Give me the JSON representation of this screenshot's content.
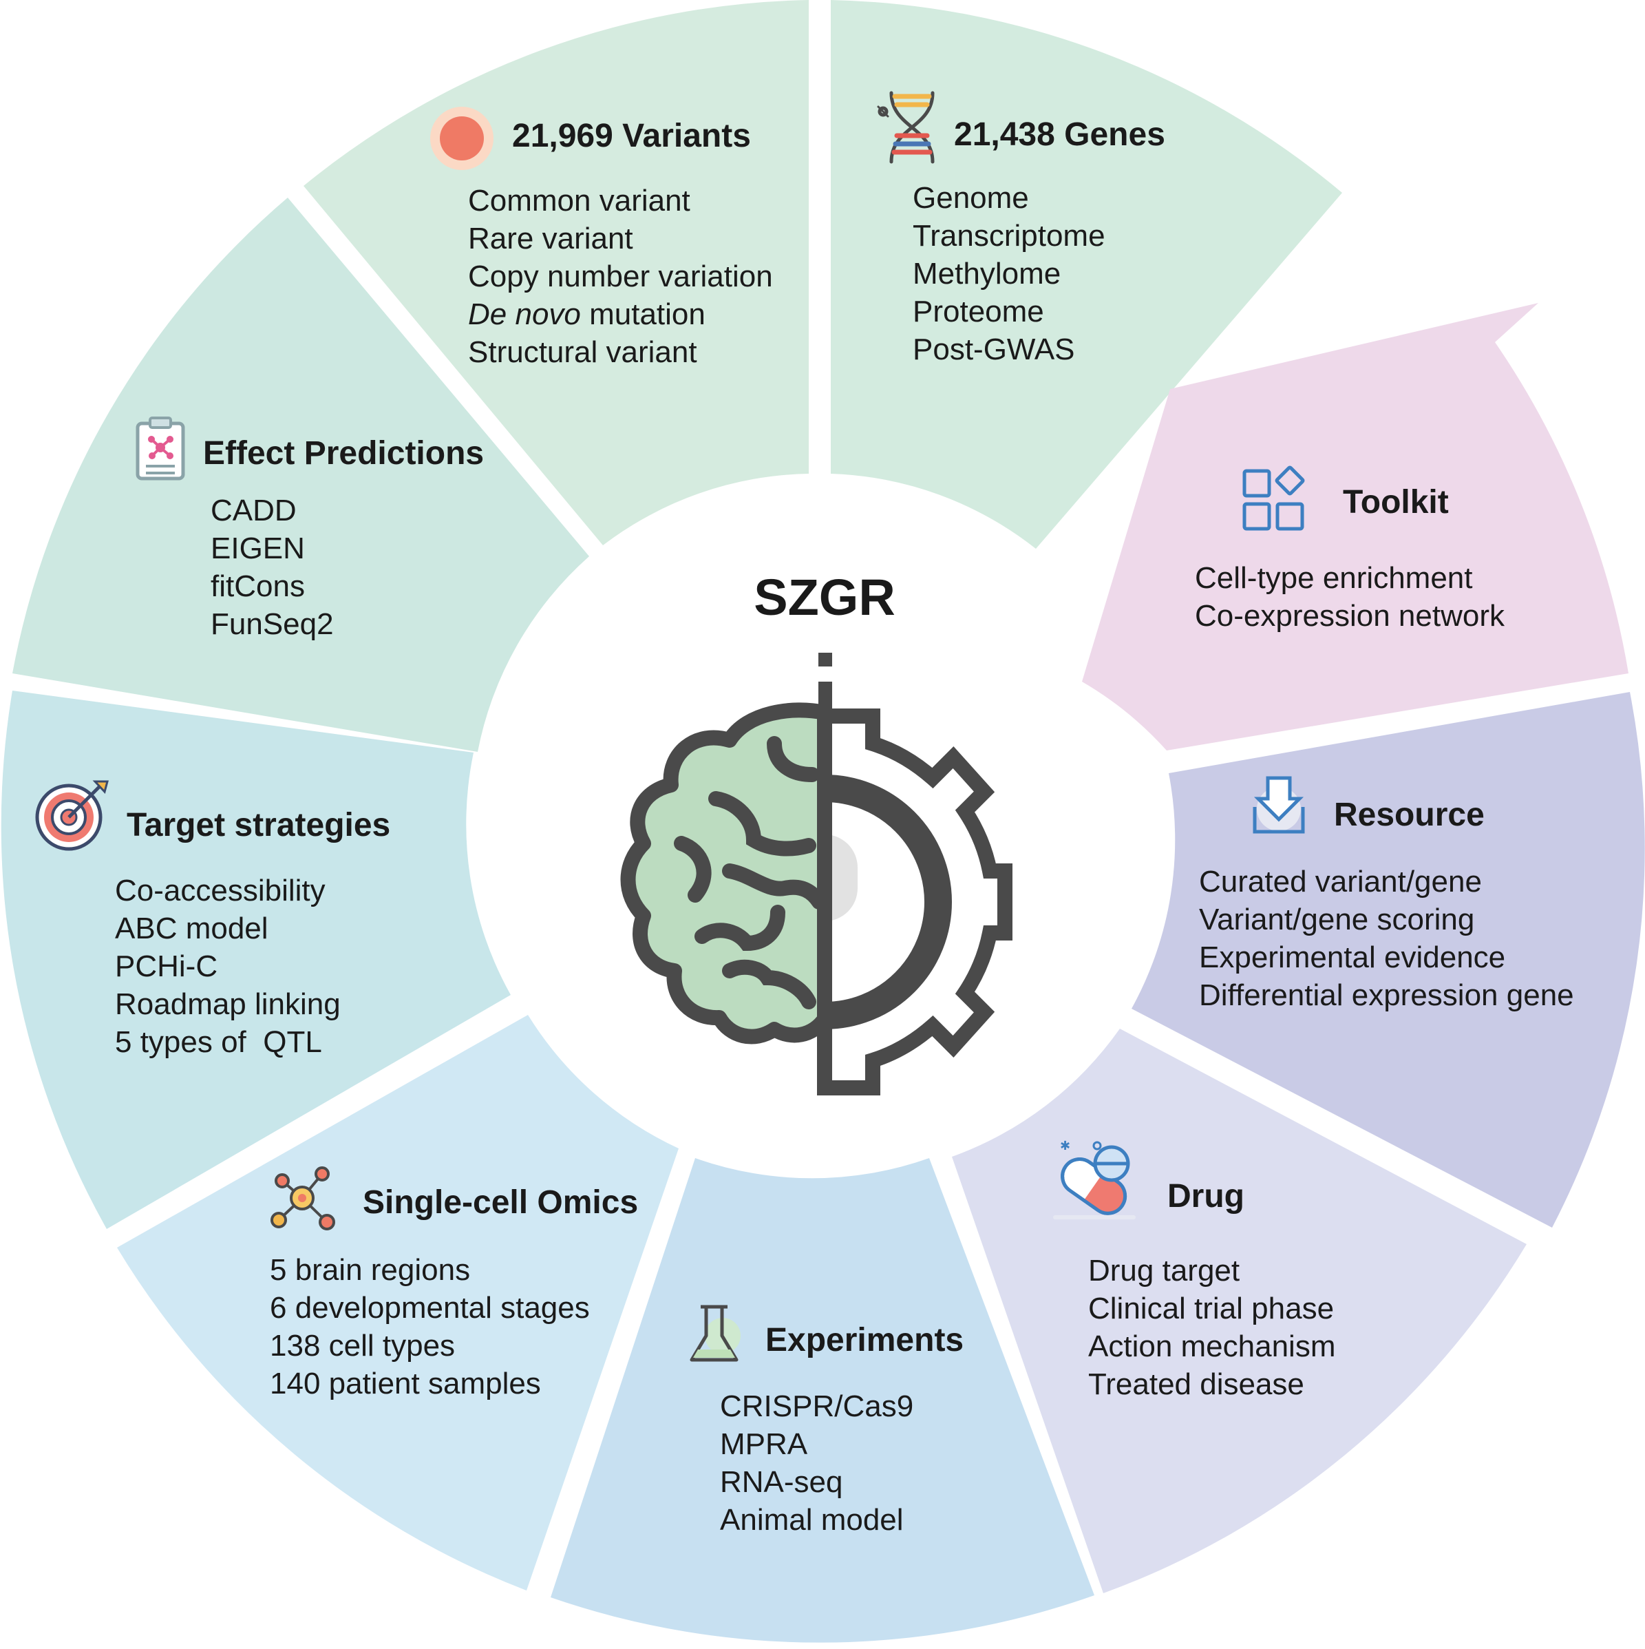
{
  "center": {
    "title": "SZGR",
    "icon": "brain-gear-icon"
  },
  "segments": [
    {
      "id": "variants",
      "title": "21,969 Variants",
      "icon": "variant-dot-icon",
      "color": "#d5ebdf",
      "items": [
        "Common variant",
        "Rare variant",
        "Copy number variation",
        "De novo mutation",
        "Structural variant"
      ],
      "italic_prefix_item": {
        "index": 3,
        "italic": "De novo",
        "rest": " mutation"
      }
    },
    {
      "id": "genes",
      "title": "21,438 Genes",
      "icon": "dna-icon",
      "color": "#d3ebdf",
      "items": [
        "Genome",
        "Transcriptome",
        "Methylome",
        "Proteome",
        "Post-GWAS"
      ]
    },
    {
      "id": "toolkit",
      "title": "Toolkit",
      "icon": "toolkit-grid-icon",
      "color": "#eed9ea",
      "items": [
        "Cell-type enrichment",
        "Co-expression network"
      ]
    },
    {
      "id": "resource",
      "title": "Resource",
      "icon": "download-tray-icon",
      "color": "#c9cbe6",
      "items": [
        "Curated variant/gene",
        "Variant/gene scoring",
        "Experimental evidence",
        "Differential expression gene"
      ]
    },
    {
      "id": "drug",
      "title": "Drug",
      "icon": "pill-icon",
      "color": "#dcdef0",
      "items": [
        "Drug target",
        "Clinical trial phase",
        "Action mechanism",
        "Treated disease"
      ]
    },
    {
      "id": "experiments",
      "title": "Experiments",
      "icon": "flask-icon",
      "color": "#c7e0f1",
      "items": [
        "CRISPR/Cas9",
        "MPRA",
        "RNA-seq",
        "Animal model"
      ]
    },
    {
      "id": "singlecell",
      "title": "Single-cell Omics",
      "icon": "network-node-icon",
      "color": "#d0e8f4",
      "items": [
        "5 brain regions",
        "6 developmental stages",
        "138 cell types",
        "140 patient samples"
      ]
    },
    {
      "id": "target",
      "title": "Target strategies",
      "icon": "target-arrow-icon",
      "color": "#c8e6ea",
      "items": [
        "Co-accessibility",
        "ABC model",
        "PCHi-C",
        "Roadmap linking",
        "5 types of  QTL"
      ]
    },
    {
      "id": "effect",
      "title": "Effect Predictions",
      "icon": "clipboard-molecule-icon",
      "color": "#cde8e1",
      "items": [
        "CADD",
        "EIGEN",
        "fitCons",
        "FunSeq2"
      ]
    }
  ]
}
